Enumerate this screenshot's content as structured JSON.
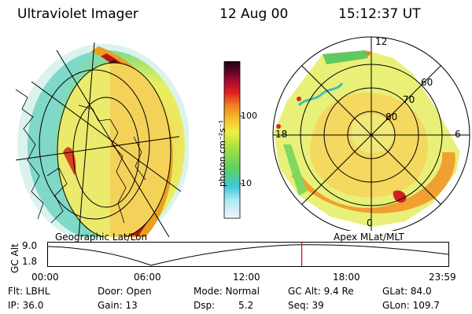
{
  "header": {
    "title": "Ultraviolet Imager",
    "date": "12 Aug 00",
    "time": "15:12:37 UT"
  },
  "geographic_panel": {
    "label": "Geographic Lat/Lon"
  },
  "apex_panel": {
    "label": "Apex MLat/MLT",
    "lat_labels": [
      "60",
      "70",
      "80"
    ],
    "mlt_labels": {
      "top": "12",
      "right": "6",
      "bottom": "0",
      "left": "18"
    }
  },
  "colorbar": {
    "unit_label": "photon cm⁻²s⁻¹",
    "ticks": [
      "100",
      "10"
    ],
    "scale": "log"
  },
  "gc_alt_plot": {
    "ylabel": "GC Alt",
    "yticks": [
      "9.0",
      "1.8"
    ],
    "xticks": [
      "00:00",
      "06:00",
      "12:00",
      "18:00",
      "23:59"
    ],
    "marker_time": "15:12:37",
    "marker_color": "#cc0000"
  },
  "info": {
    "flt": "Flt: LBHL",
    "ip": "IP: 36.0",
    "door": "Door: Open",
    "gain": "Gain: 13",
    "mode": "Mode: Normal",
    "dsp": "Dsp:",
    "dsp_value": "5.2",
    "gc_alt": "GC Alt: 9.4 Re",
    "seq": "Seq: 39",
    "glat": "GLat: 84.0",
    "glon": "GLon: 109.7"
  }
}
